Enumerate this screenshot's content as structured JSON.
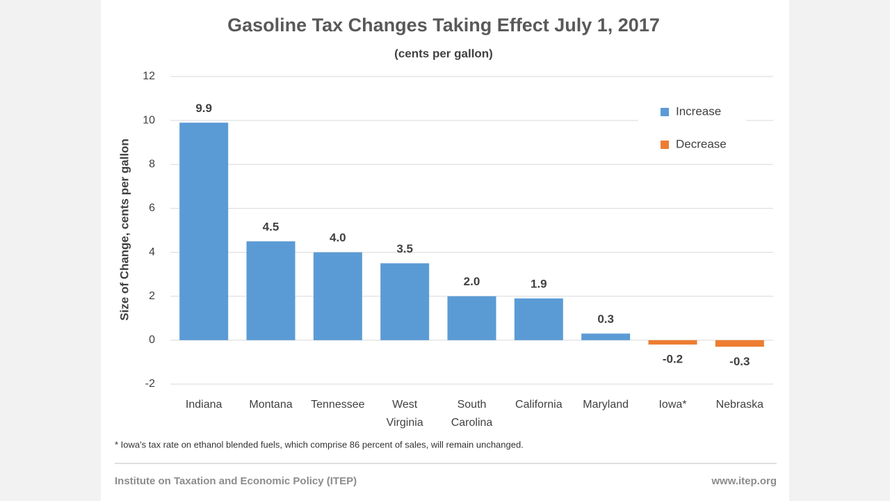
{
  "chart_data": {
    "type": "bar",
    "title": "Gasoline Tax Changes Taking Effect July 1, 2017",
    "subtitle": "(cents per gallon)",
    "y_label": "Size of Change, cents per gallon",
    "categories": [
      "Indiana",
      "Montana",
      "Tennessee",
      "West Virginia",
      "South Carolina",
      "California",
      "Maryland",
      "Iowa*",
      "Nebraska"
    ],
    "series": [
      {
        "name": "Increase",
        "color": "#5b9bd5",
        "values": [
          9.9,
          4.5,
          4.0,
          3.5,
          2.0,
          1.9,
          0.3,
          null,
          null
        ],
        "value_labels": [
          "9.9",
          "4.5",
          "4.0",
          "3.5",
          "2.0",
          "1.9",
          "0.3",
          null,
          null
        ]
      },
      {
        "name": "Decrease",
        "color": "#ed7d31",
        "values": [
          null,
          null,
          null,
          null,
          null,
          null,
          null,
          -0.2,
          -0.3
        ],
        "value_labels": [
          null,
          null,
          null,
          null,
          null,
          null,
          null,
          "-0.2",
          "-0.3"
        ]
      }
    ],
    "ylim": [
      -2,
      12
    ],
    "yticks": [
      -2,
      0,
      2,
      4,
      6,
      8,
      10,
      12
    ],
    "grid": true,
    "legend": "upper right",
    "footnote": "* Iowa's tax rate on ethanol blended fuels, which comprise 86 percent of sales, will remain unchanged.",
    "source": "Institute on Taxation and Economic Policy (ITEP)",
    "website": "www.itep.org"
  }
}
